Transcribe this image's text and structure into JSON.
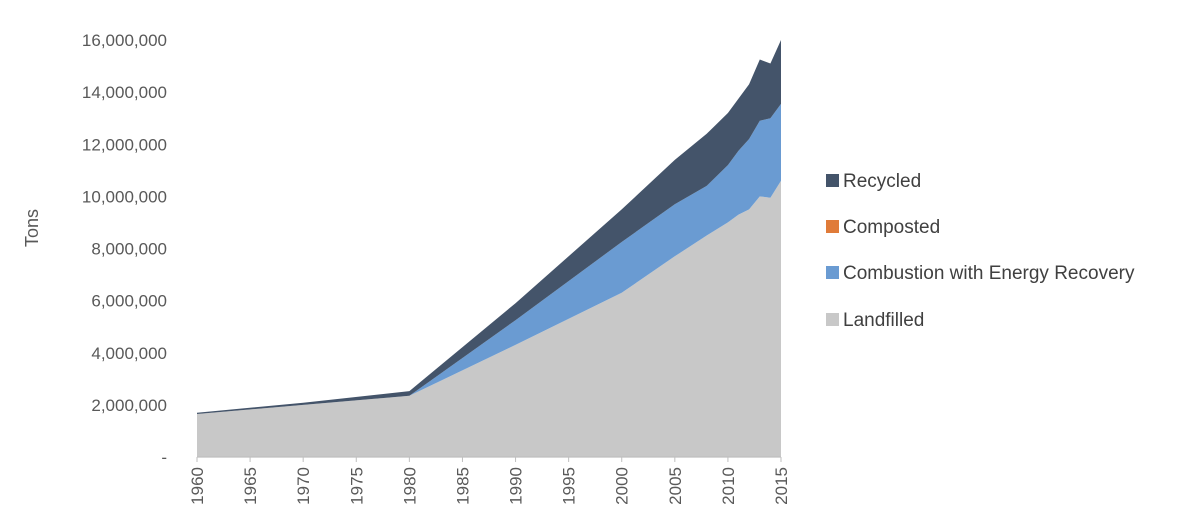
{
  "chart_data": {
    "type": "area",
    "stacked": true,
    "ylabel": "Tons",
    "ylim": [
      0,
      16000000
    ],
    "y_ticks": [
      {
        "value": 0,
        "label": "-"
      },
      {
        "value": 2000000,
        "label": "2,000,000"
      },
      {
        "value": 4000000,
        "label": "4,000,000"
      },
      {
        "value": 6000000,
        "label": "6,000,000"
      },
      {
        "value": 8000000,
        "label": "8,000,000"
      },
      {
        "value": 10000000,
        "label": "10,000,000"
      },
      {
        "value": 12000000,
        "label": "12,000,000"
      },
      {
        "value": 14000000,
        "label": "14,000,000"
      },
      {
        "value": 16000000,
        "label": "16,000,000"
      }
    ],
    "x_ticks": [
      "1960",
      "1965",
      "1970",
      "1975",
      "1980",
      "1985",
      "1990",
      "1995",
      "2000",
      "2005",
      "2010",
      "2015"
    ],
    "grid": false,
    "legend_position": "right",
    "x": [
      1960,
      1970,
      1980,
      1990,
      2000,
      2005,
      2008,
      2010,
      2011,
      2012,
      2013,
      2014,
      2015
    ],
    "series": [
      {
        "name": "Landfilled",
        "color": "#c8c8c8",
        "values": [
          1650000,
          2000000,
          2350000,
          4300000,
          6300000,
          7700000,
          8500000,
          9000000,
          9300000,
          9500000,
          10000000,
          9950000,
          10600000
        ]
      },
      {
        "name": "Combustion with Energy Recovery",
        "color": "#6a9bd2",
        "values": [
          0,
          0,
          0,
          950000,
          1950000,
          2000000,
          1900000,
          2200000,
          2450000,
          2700000,
          2900000,
          3050000,
          2950000
        ]
      },
      {
        "name": "Composted",
        "color": "#e07b39",
        "values": [
          0,
          0,
          0,
          0,
          0,
          0,
          0,
          0,
          0,
          0,
          0,
          0,
          0
        ]
      },
      {
        "name": "Recycled",
        "color": "#44546a",
        "values": [
          50000,
          80000,
          180000,
          650000,
          1250000,
          1700000,
          2000000,
          2000000,
          2000000,
          2100000,
          2350000,
          2100000,
          2450000
        ]
      }
    ],
    "legend_order": [
      "Recycled",
      "Composted",
      "Combustion with Energy Recovery",
      "Landfilled"
    ]
  }
}
